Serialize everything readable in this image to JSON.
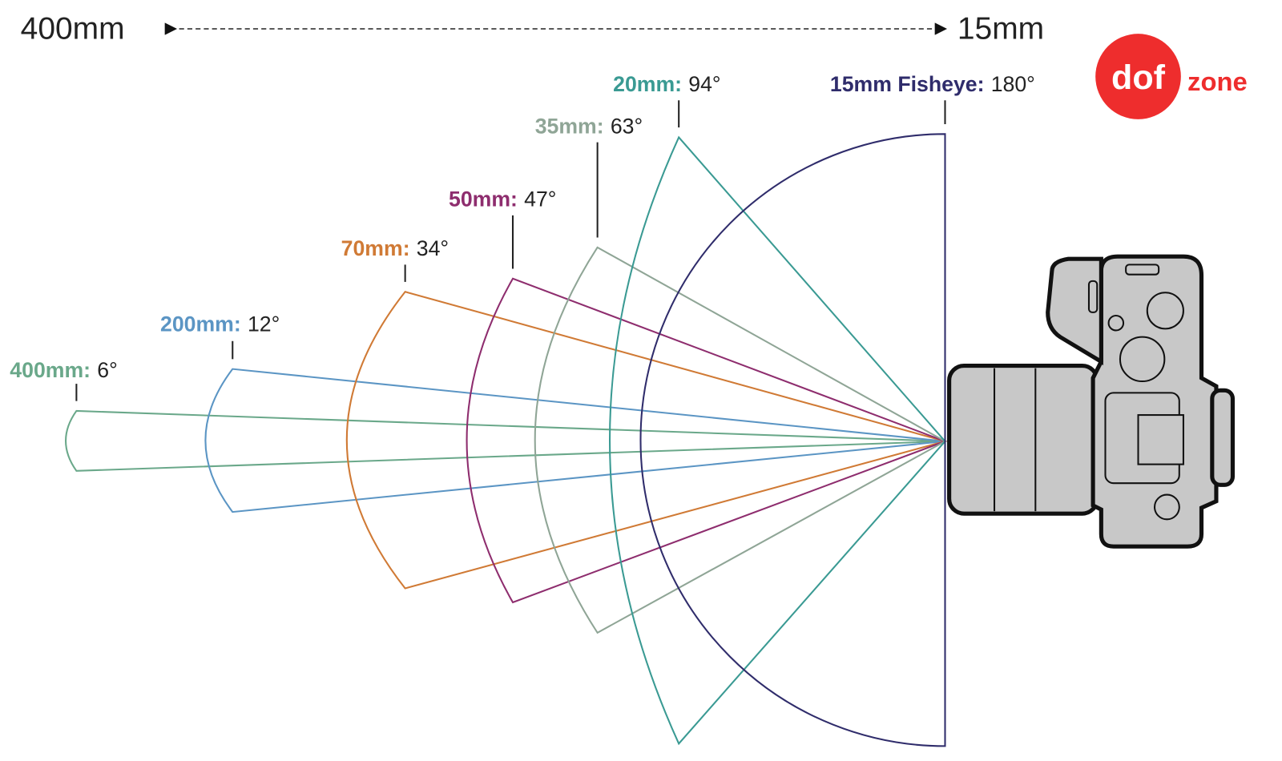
{
  "header": {
    "left_label": "400mm",
    "right_label": "15mm"
  },
  "logo": {
    "left": "dof",
    "right": "zone"
  },
  "lenses": [
    {
      "name": "400mm:",
      "angle": "6°",
      "color": "#6aa88a"
    },
    {
      "name": "200mm:",
      "angle": "12°",
      "color": "#5b95c4"
    },
    {
      "name": "70mm:",
      "angle": "34°",
      "color": "#d07a35"
    },
    {
      "name": "50mm:",
      "angle": "47°",
      "color": "#8e2d6e"
    },
    {
      "name": "35mm:",
      "angle": "63°",
      "color": "#8fa596"
    },
    {
      "name": "20mm:",
      "angle": "94°",
      "color": "#3a9a93"
    },
    {
      "name": "15mm Fisheye:",
      "angle": "180°",
      "color": "#2f2c6b"
    }
  ]
}
